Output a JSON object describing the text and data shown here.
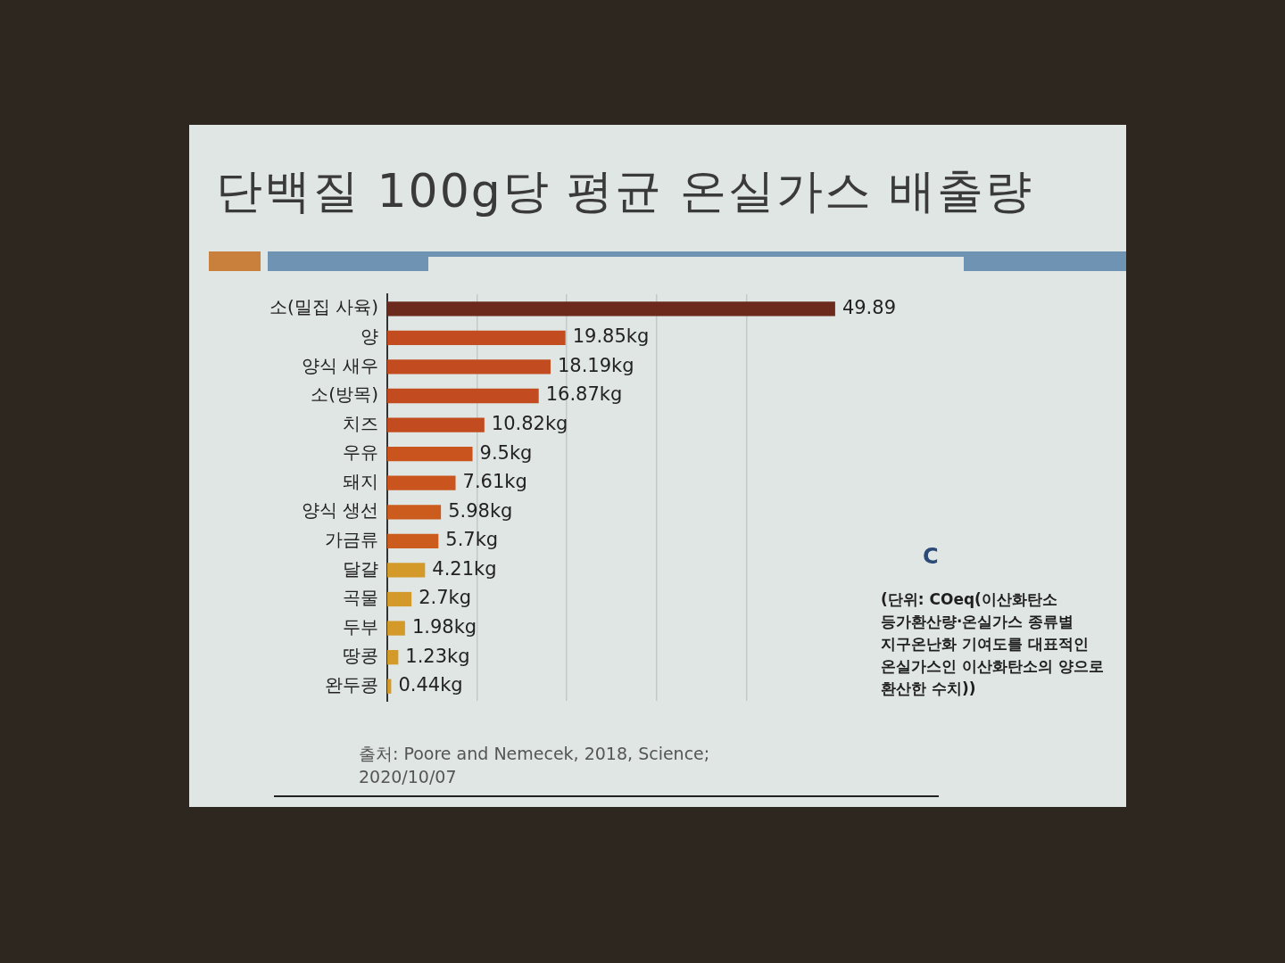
{
  "chart_data": {
    "type": "bar",
    "orientation": "horizontal",
    "title": "단백질 100g당 평균 온실가스 배출량",
    "categories": [
      "소(밀집 사육)",
      "양",
      "양식 새우",
      "소(방목)",
      "치즈",
      "우유",
      "돼지",
      "양식 생선",
      "가금류",
      "달걀",
      "곡물",
      "두부",
      "땅콩",
      "완두콩"
    ],
    "values": [
      49.89,
      19.85,
      18.19,
      16.87,
      10.82,
      9.5,
      7.61,
      5.98,
      5.7,
      4.21,
      2.7,
      1.98,
      1.23,
      0.44
    ],
    "value_labels": [
      "49.89",
      "19.85kg",
      "18.19kg",
      "16.87kg",
      "10.82kg",
      "9.5kg",
      "7.61kg",
      "5.98kg",
      "5.7kg",
      "4.21kg",
      "2.7kg",
      "1.98kg",
      "1.23kg",
      "0.44kg"
    ],
    "colors": [
      "#6b2a1c",
      "#c24b1f",
      "#c24b1f",
      "#c24b1f",
      "#c24b1f",
      "#c9541e",
      "#c9541e",
      "#cc5c1e",
      "#cc5c1e",
      "#d39a2a",
      "#d39a2a",
      "#d39a2a",
      "#d39a2a",
      "#d39a2a"
    ],
    "xlim": [
      0,
      50
    ],
    "xticks": [
      {
        "value": 10,
        "label": null
      },
      {
        "value": 20,
        "label": null
      },
      {
        "value": 30,
        "label": null
      },
      {
        "value": 40,
        "label": null
      }
    ],
    "grid": "x",
    "tick_labels": "y",
    "annotations": [
      "(단위: COeq(이산화탄소 등가환산량·온실가스 종류별 지구온난화 기여도를 대표적인 온실가스인 이산화탄소의 양으로 환산한 수치))",
      "출처: Poore and Nemecek, 2018, Science; 2020/10/07",
      "C"
    ]
  }
}
